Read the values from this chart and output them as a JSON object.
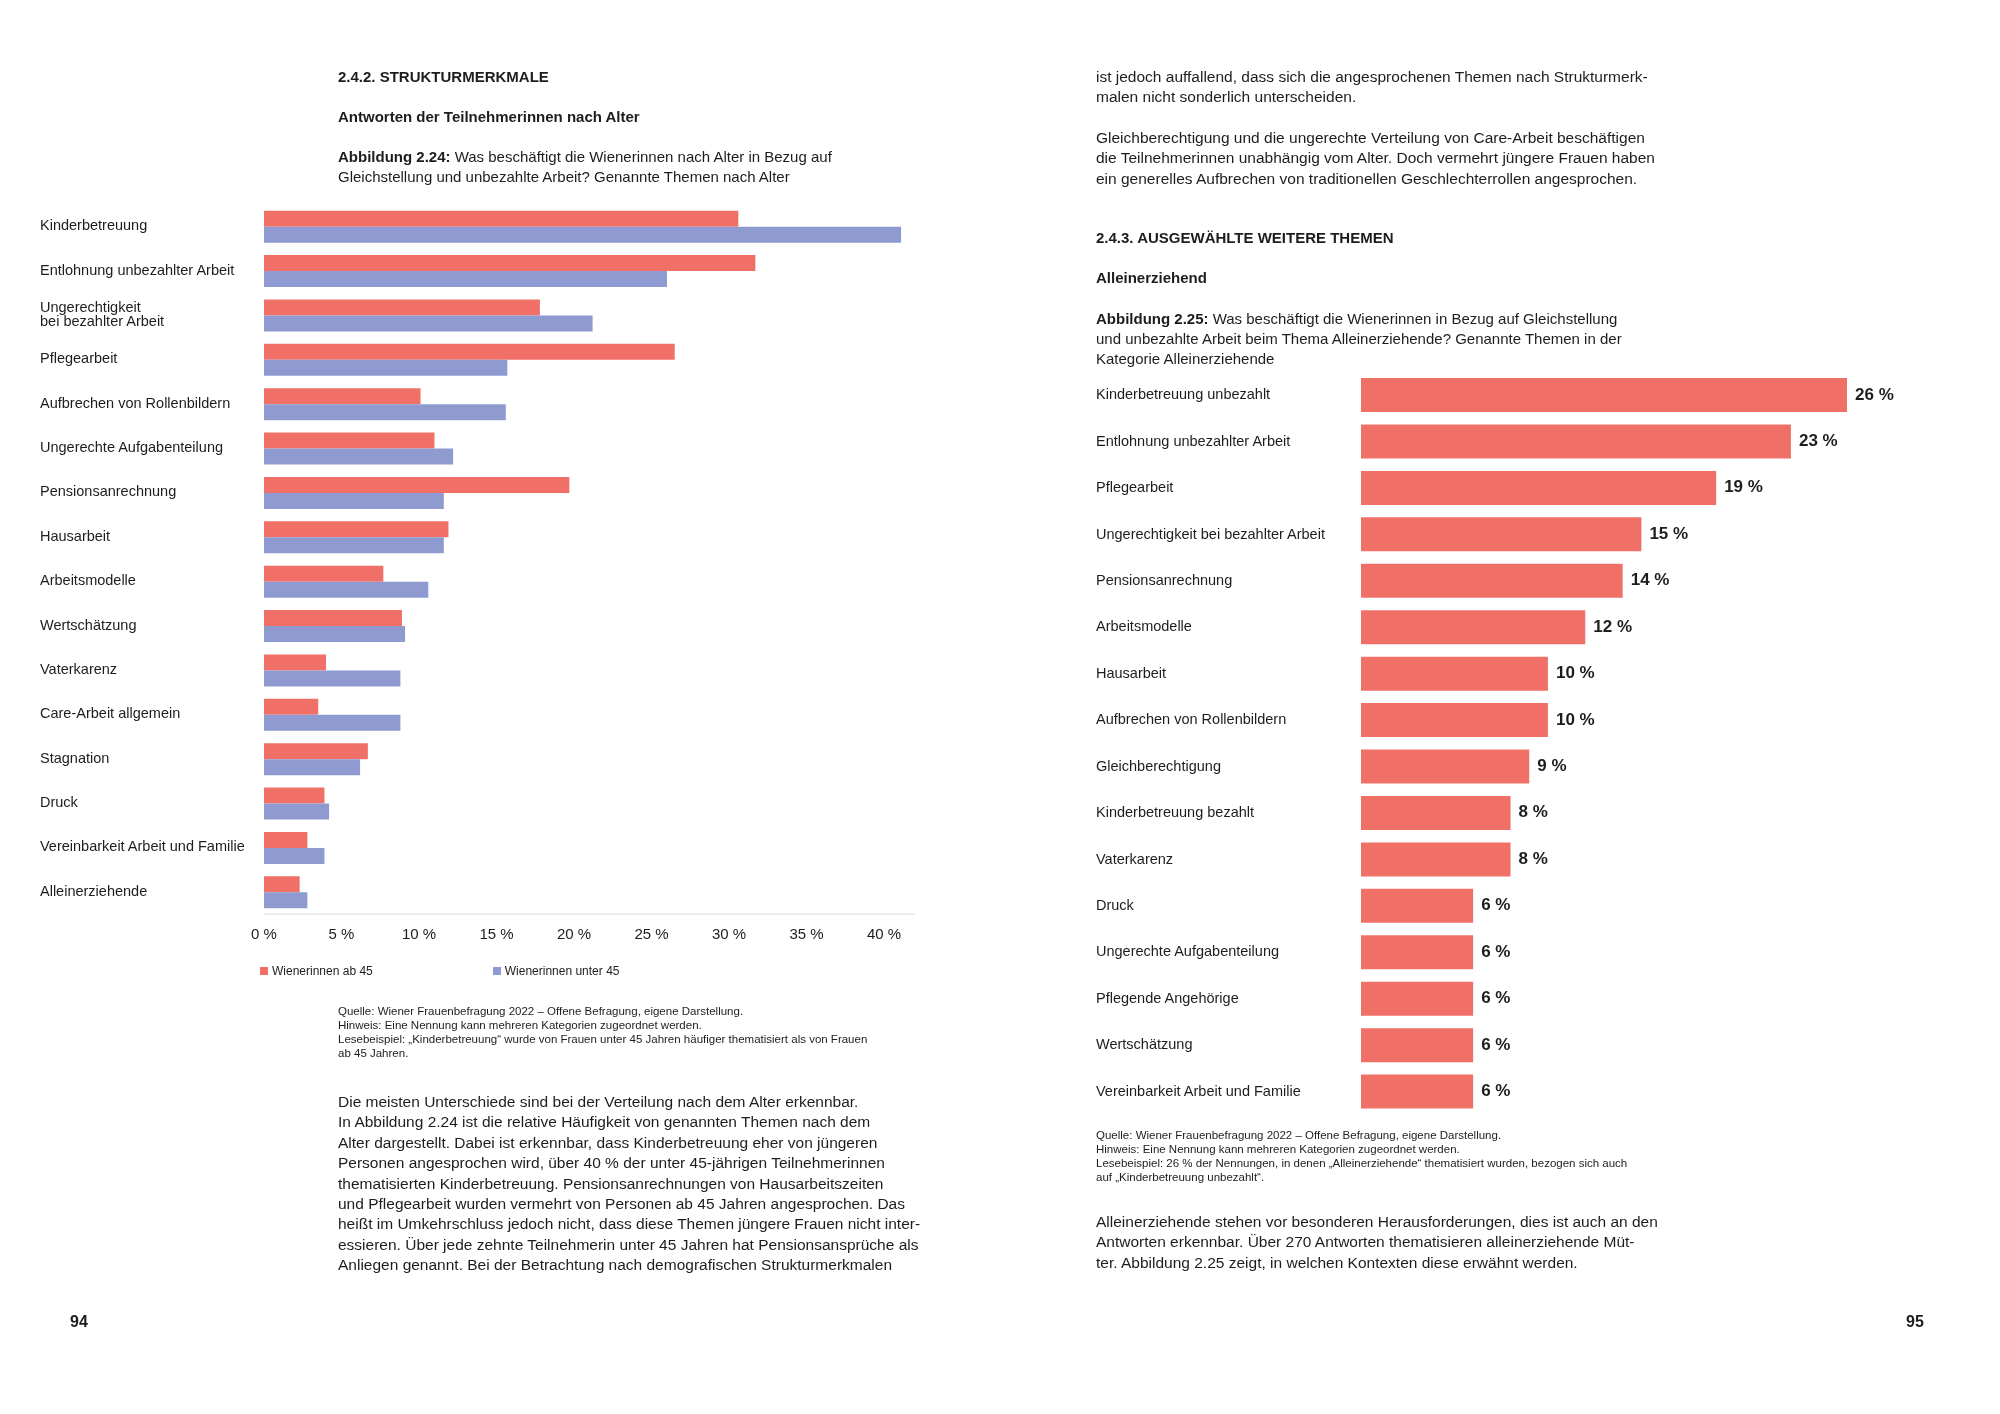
{
  "chart_data": [
    {
      "type": "bar",
      "orientation": "horizontal",
      "title": "Abbildung 2.24: Was beschäftigt die Wienerinnen nach Alter in Bezug auf\nGleichstellung und unbezahlte Arbeit? Genannte Themen nach Alter",
      "categories": [
        "Kinderbetreuung",
        "Entlohnung unbezahlter Arbeit",
        "Ungerechtigkeit\nbei bezahlter Arbeit",
        "Pflegearbeit",
        "Aufbrechen von Rollenbildern",
        "Ungerechte Aufgabenteilung",
        "Pensionsanrechnung",
        "Hausarbeit",
        "Arbeitsmodelle",
        "Wertschätzung",
        "Vaterkarenz",
        "Care-Arbeit allgemein",
        "Stagnation",
        "Druck",
        "Vereinbarkeit Arbeit und Familie",
        "Alleinerziehende"
      ],
      "series": [
        {
          "name": "Wienerinnen ab 45",
          "color": "#f07068",
          "values": [
            30.6,
            31.7,
            17.8,
            26.5,
            10.1,
            11.0,
            19.7,
            11.9,
            7.7,
            8.9,
            4.0,
            3.5,
            6.7,
            3.9,
            2.8,
            2.3
          ]
        },
        {
          "name": "Wienerinnen unter 45",
          "color": "#8f9bd0",
          "values": [
            41.1,
            26.0,
            21.2,
            15.7,
            15.6,
            12.2,
            11.6,
            11.6,
            10.6,
            9.1,
            8.8,
            8.8,
            6.2,
            4.2,
            3.9,
            2.8
          ]
        }
      ],
      "xlim": [
        0,
        42
      ],
      "xticks": [
        {
          "value": 0,
          "label": "0 %"
        },
        {
          "value": 5,
          "label": "5 %"
        },
        {
          "value": 10,
          "label": "10 %"
        },
        {
          "value": 15,
          "label": "15 %"
        },
        {
          "value": 20,
          "label": "20 %"
        },
        {
          "value": 25,
          "label": "25 %"
        },
        {
          "value": 30,
          "label": "30 %"
        },
        {
          "value": 35,
          "label": "35 %"
        },
        {
          "value": 40,
          "label": "40 %"
        }
      ],
      "legend": "bottom left",
      "annotations": [
        "2.4.2. STRUKTURMERKMALE",
        "Antworten der Teilnehmerinnen nach Alter",
        "Quelle: Wiener Frauenbefragung 2022 – Offene Befragung, eigene Darstellung.",
        "Hinweis: Eine Nennung kann mehreren Kategorien zugeordnet werden.",
        "Lesebeispiel: „Kinderbetreuung“ wurde von Frauen unter 45 Jahren häufiger thematisiert als von Frauen\nab 45 Jahren.",
        "Die meisten Unterschiede sind bei der Verteilung nach dem Alter erkennbar.\nIn Abbildung 2.24 ist die relative Häufigkeit von genannten Themen nach dem\nAlter dargestellt. Dabei ist erkennbar, dass Kinderbetreuung eher von jüngeren\nPersonen angesprochen wird, über 40 % der unter 45-jährigen Teilnehmerinnen\nthematisierten Kinderbetreuung. Pensionsanrechnungen von Hausarbeitszeiten\nund Pflegearbeit wurden vermehrt von Personen ab 45 Jahren angesprochen. Das\nheißt im Umkehrschluss jedoch nicht, dass diese Themen jüngere Frauen nicht inter-\nessieren. Über jede zehnte Teilnehmerin unter 45 Jahren hat Pensionsansprüche als\nAnliegen genannt. Bei der Betrachtung nach demografischen Strukturmerkmalen",
        "94"
      ]
    },
    {
      "type": "bar",
      "orientation": "horizontal",
      "title": "Abbildung 2.25: Was beschäftigt die Wienerinnen in Bezug auf Gleichstellung\nund unbezahlte Arbeit beim Thema Alleinerziehende? Genannte Themen in der\nKategorie Alleinerziehende",
      "categories": [
        "Kinderbetreuung unbezahlt",
        "Entlohnung unbezahlter Arbeit",
        "Pflegearbeit",
        "Ungerechtigkeit bei bezahlter Arbeit",
        "Pensionsanrechnung",
        "Arbeitsmodelle",
        "Hausarbeit",
        "Aufbrechen von Rollenbildern",
        "Gleichberechtigung",
        "Kinderbetreuung bezahlt",
        "Vaterkarenz",
        "Druck",
        "Ungerechte Aufgabenteilung",
        "Pflegende Angehörige",
        "Wertschätzung",
        "Vereinbarkeit Arbeit und Familie"
      ],
      "values": [
        26,
        23,
        19,
        15,
        14,
        12,
        10,
        10,
        9,
        8,
        8,
        6,
        6,
        6,
        6,
        6
      ],
      "value_labels": [
        "26 %",
        "23 %",
        "19 %",
        "15 %",
        "14 %",
        "12 %",
        "10 %",
        "10 %",
        "9 %",
        "8 %",
        "8 %",
        "6 %",
        "6 %",
        "6 %",
        "6 %",
        "6 %"
      ],
      "color": "#f07068",
      "tick_labels": "y",
      "annotations": [
        "ist jedoch auffallend, dass sich die angesprochenen Themen nach Strukturmerk-\nmalen nicht sonderlich unterscheiden.",
        "Gleichberechtigung und die ungerechte Verteilung von Care-Arbeit beschäftigen\ndie Teilnehmerinnen unabhängig vom Alter. Doch vermehrt jüngere Frauen haben\nein generelles Aufbrechen von traditionellen Geschlechterrollen angesprochen.",
        "2.4.3. AUSGEWÄHLTE WEITERE THEMEN",
        "Alleinerziehend",
        "Quelle: Wiener Frauenbefragung 2022 – Offene Befragung, eigene Darstellung.",
        "Hinweis: Eine Nennung kann mehreren Kategorien zugeordnet werden.",
        "Lesebeispiel: 26 % der Nennungen, in denen „Alleinerziehende“ thematisiert wurden, bezogen sich auch\nauf „Kinderbetreuung unbezahlt“.",
        "Alleinerziehende stehen vor besonderen Herausforderungen, dies ist auch an den\nAntworten erkennbar. Über 270 Antworten thematisieren alleinerziehende Müt-\nter. Abbildung 2.25 zeigt, in welchen Kontexten diese erwähnt werden.",
        "95"
      ]
    }
  ]
}
